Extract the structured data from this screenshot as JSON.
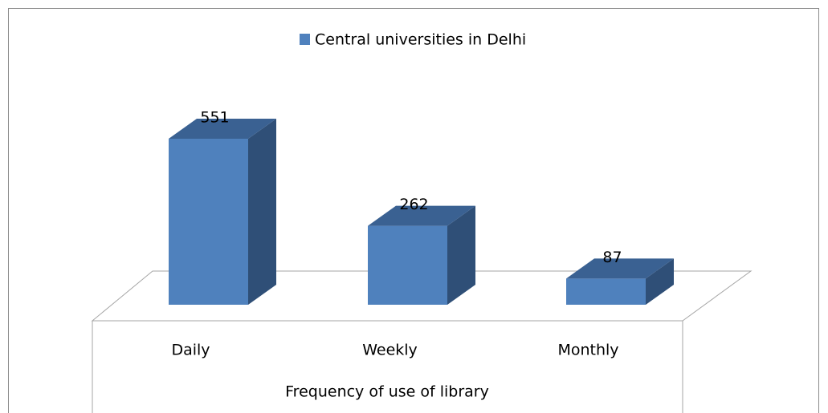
{
  "chart_data": {
    "type": "bar3d",
    "categories": [
      "Daily",
      "Weekly",
      "Monthly"
    ],
    "series": [
      {
        "name": "Central universities in Delhi",
        "color": "#4f81bd",
        "values": [
          551,
          262,
          87
        ]
      }
    ],
    "xlabel": "Frequency of use of library",
    "legend": "top"
  }
}
